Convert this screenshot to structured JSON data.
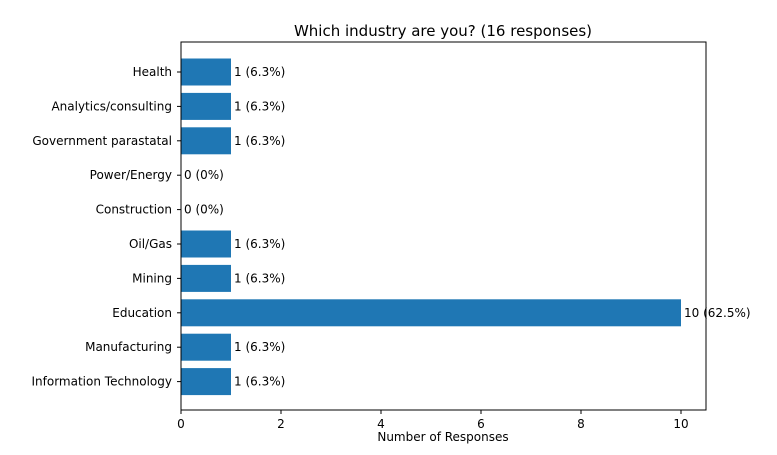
{
  "chart_data": {
    "type": "bar",
    "orientation": "horizontal",
    "title": "Which industry are you? (16 responses)",
    "xlabel": "Number of Responses",
    "ylabel": "",
    "categories": [
      "Health",
      "Analytics/consulting",
      "Government parastatal",
      "Power/Energy",
      "Construction",
      "Oil/Gas",
      "Mining",
      "Education",
      "Manufacturing",
      "Information Technology"
    ],
    "values": [
      1,
      1,
      1,
      0,
      0,
      1,
      1,
      10,
      1,
      1
    ],
    "data_labels": [
      "1 (6.3%)",
      "1 (6.3%)",
      "1 (6.3%)",
      "0 (0%)",
      "0 (0%)",
      "1 (6.3%)",
      "1 (6.3%)",
      "10 (62.5%)",
      "1 (6.3%)",
      "1 (6.3%)"
    ],
    "xlim": [
      0,
      10.5
    ],
    "xticks": [
      0,
      2,
      4,
      6,
      8,
      10
    ],
    "xtick_labels": [
      "0",
      "2",
      "4",
      "6",
      "8",
      "10"
    ],
    "grid": false,
    "bar_color": "#1f77b4"
  }
}
